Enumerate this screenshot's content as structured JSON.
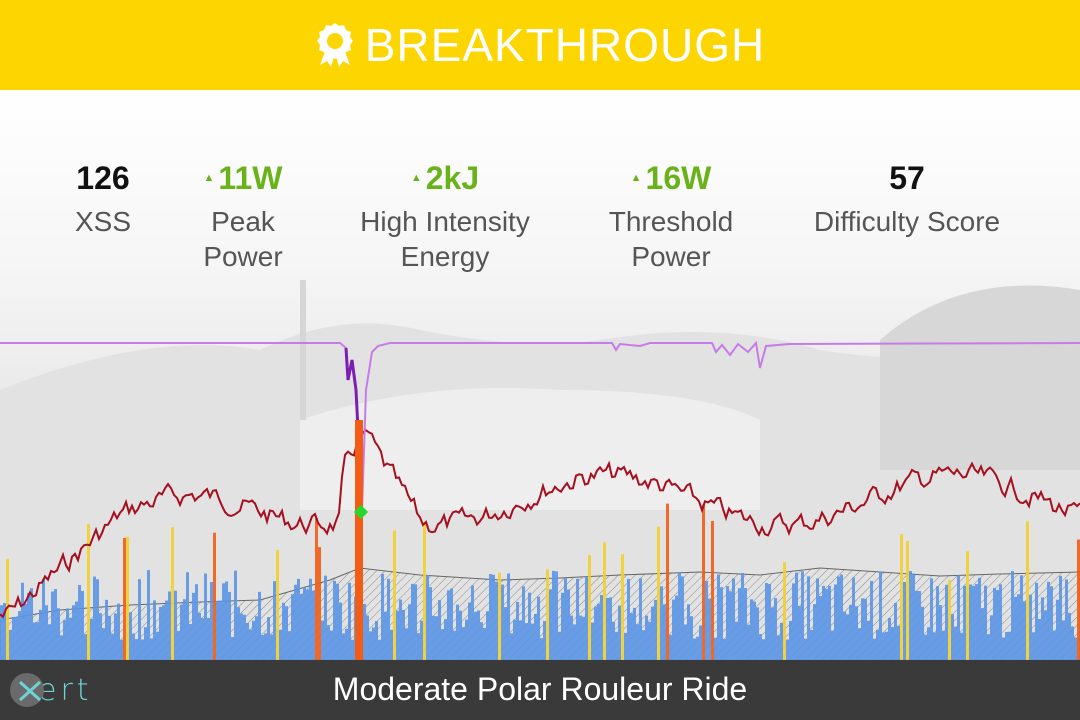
{
  "banner": {
    "title": "BREAKTHROUGH",
    "icon": "ribbon-badge-icon",
    "color": "#fdd602"
  },
  "stats": [
    {
      "value": "126",
      "label": "XSS",
      "trend": "none"
    },
    {
      "value": "11W",
      "label": "Peak\nPower",
      "trend": "up"
    },
    {
      "value": "2kJ",
      "label": "High Intensity\nEnergy",
      "trend": "up"
    },
    {
      "value": "16W",
      "label": "Threshold\nPower",
      "trend": "up"
    },
    {
      "value": "57",
      "label": "Difficulty Score",
      "trend": "none"
    }
  ],
  "colors": {
    "positive": "#6ab21a",
    "mpa_line": "#c77be8",
    "heart_rate_line": "#a50f1e",
    "power_low": "#5b95e6",
    "power_mid": "#f2d030",
    "power_high": "#f25c14",
    "breakthrough_marker": "#2bd62b",
    "footer_bg": "#3a3a3a",
    "logo": "#6fd3d6"
  },
  "footer": {
    "title": "Moderate Polar Rouleur Ride",
    "logo_text": "ert"
  }
}
